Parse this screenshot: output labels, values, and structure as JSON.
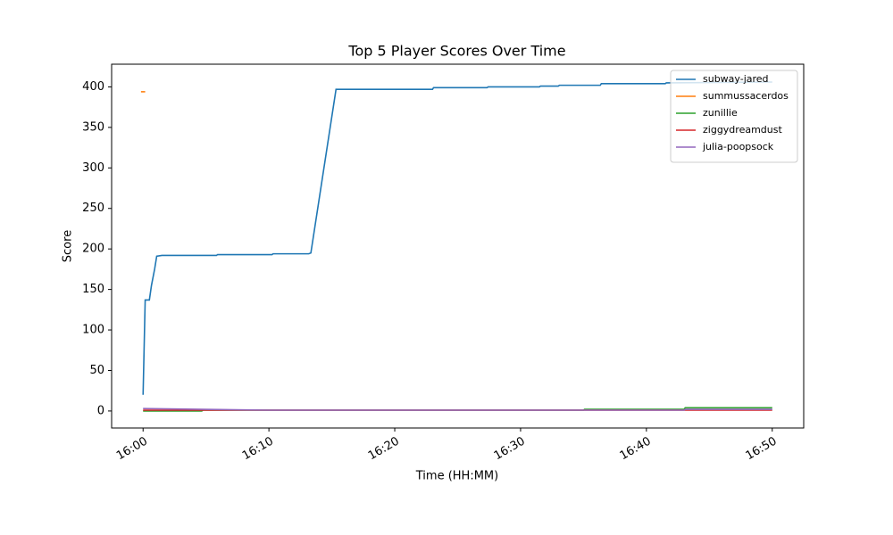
{
  "chart_data": {
    "type": "line",
    "title": "Top 5 Player Scores Over Time",
    "xlabel": "Time (HH:MM)",
    "ylabel": "Score",
    "xlim": [
      "15:57:30",
      "16:52:30"
    ],
    "ylim": [
      -21,
      428
    ],
    "xticks": [
      "16:00",
      "16:10",
      "16:20",
      "16:30",
      "16:40",
      "16:50"
    ],
    "yticks": [
      0,
      50,
      100,
      150,
      200,
      250,
      300,
      350,
      400
    ],
    "legend": "upper right",
    "series": [
      {
        "name": "subway-jared",
        "color": "#1f77b4",
        "x": [
          "16:00:00",
          "16:00:10",
          "16:00:30",
          "16:00:40",
          "16:00:55",
          "16:01:05",
          "16:01:30",
          "16:05:50",
          "16:05:55",
          "16:10:15",
          "16:10:20",
          "16:13:10",
          "16:13:20",
          "16:15:20",
          "16:23:00",
          "16:23:05",
          "16:27:20",
          "16:27:25",
          "16:31:30",
          "16:31:35",
          "16:33:00",
          "16:33:05",
          "16:36:20",
          "16:36:25",
          "16:41:30",
          "16:41:35",
          "16:50:00"
        ],
        "values": [
          20,
          137,
          137,
          155,
          175,
          191,
          192,
          192,
          193,
          193,
          194,
          194,
          195,
          397,
          397,
          399,
          399,
          400,
          400,
          401,
          401,
          402,
          402,
          404,
          404,
          405,
          406
        ]
      },
      {
        "name": "summussacerdos",
        "color": "#ff7f0e",
        "x": [
          "15:59:50",
          "16:00:10"
        ],
        "values": [
          394,
          394
        ]
      },
      {
        "name": "zunillie",
        "color": "#2ca02c",
        "x": [
          "16:00:00",
          "16:04:40",
          "16:04:45",
          "16:35:00",
          "16:35:05",
          "16:43:00",
          "16:43:05",
          "16:50:00"
        ],
        "values": [
          0,
          0,
          1,
          1,
          2,
          2,
          4,
          4
        ]
      },
      {
        "name": "ziggydreamdust",
        "color": "#d62728",
        "x": [
          "16:00:00",
          "16:50:00"
        ],
        "values": [
          1,
          1
        ]
      },
      {
        "name": "julia-poopsock",
        "color": "#9467bd",
        "x": [
          "16:00:00",
          "16:10:00",
          "16:43:00",
          "16:43:05",
          "16:50:00"
        ],
        "values": [
          3,
          1,
          1,
          2,
          2
        ]
      }
    ]
  }
}
